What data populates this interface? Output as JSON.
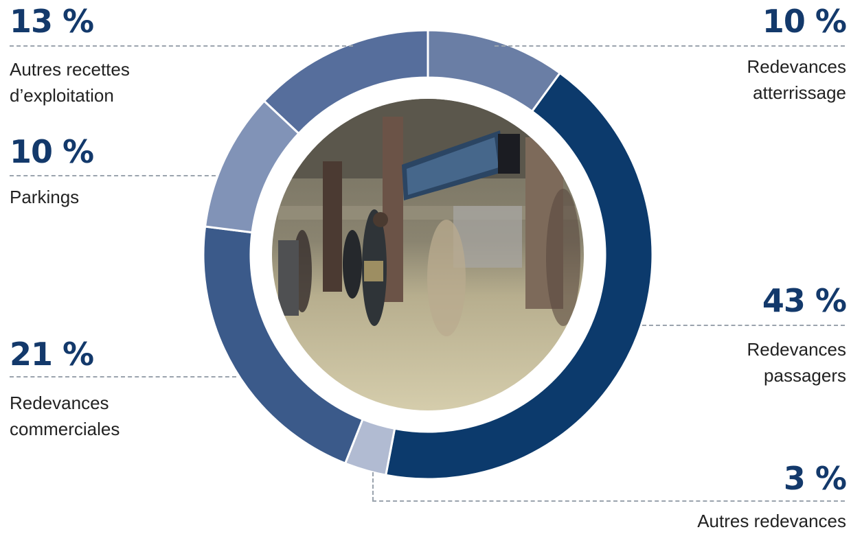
{
  "chart_data": {
    "type": "pie",
    "donut": true,
    "center_image": "airport-terminal-photo",
    "slices": [
      {
        "label": "Redevances atterrissage",
        "pct_label": "10 %",
        "value": 10,
        "color": "#6a7ea5"
      },
      {
        "label": "Redevances passagers",
        "pct_label": "43 %",
        "value": 43,
        "color": "#0c3a6c"
      },
      {
        "label": "Autres redevances",
        "pct_label": "3 %",
        "value": 3,
        "color": "#b1bbd2"
      },
      {
        "label": "Redevances commerciales",
        "pct_label": "21 %",
        "value": 21,
        "color": "#3b5a8a"
      },
      {
        "label": "Parkings",
        "pct_label": "10 %",
        "value": 10,
        "color": "#8193b7"
      },
      {
        "label": "Autres recettes d’exploitation",
        "pct_label": "13 %",
        "value": 13,
        "color": "#566e9c"
      }
    ]
  },
  "labels": {
    "atterrissage": {
      "pct": "10 %",
      "line1": "Redevances",
      "line2": "atterrissage"
    },
    "passagers": {
      "pct": "43 %",
      "line1": "Redevances",
      "line2": "passagers"
    },
    "autres_redevances": {
      "pct": "3 %",
      "line1": "Autres redevances"
    },
    "commerciales": {
      "pct": "21 %",
      "line1": "Redevances",
      "line2": "commerciales"
    },
    "parkings": {
      "pct": "10 %",
      "line1": "Parkings"
    },
    "autres_recettes": {
      "pct": "13 %",
      "line1": "Autres recettes",
      "line2": "d’exploitation"
    }
  }
}
